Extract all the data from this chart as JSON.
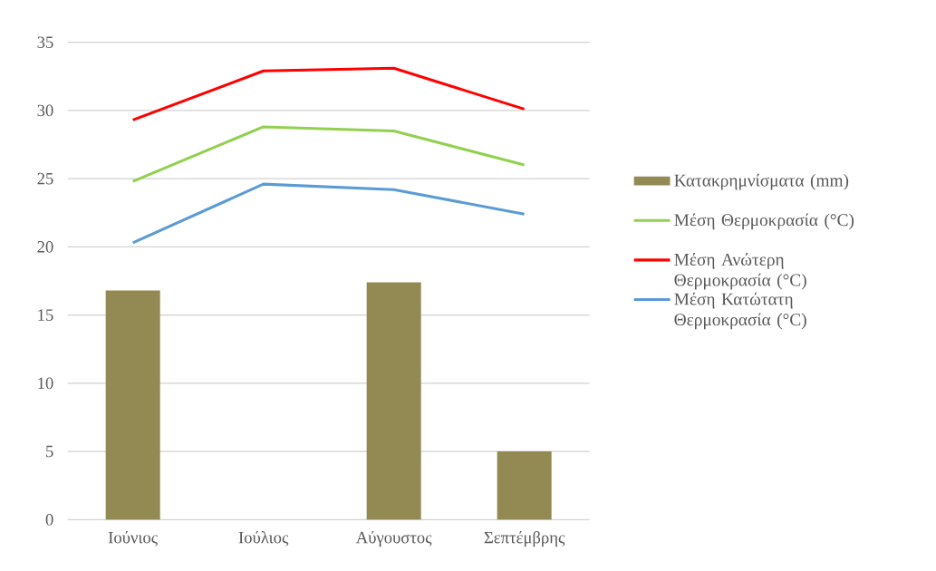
{
  "chart_data": {
    "type": "bar",
    "categories": [
      "Ιούνιος",
      "Ιούλιος",
      "Αύγουστος",
      "Σεπτέμβρης"
    ],
    "series": [
      {
        "name": "Κατακρημνίσματα (mm)",
        "color": "#938953",
        "values": [
          16.8,
          0,
          17.4,
          5.0
        ]
      },
      {
        "name": "Μέση Θερμοκρασία (°C)",
        "type": "line",
        "color": "#92d050",
        "values": [
          24.8,
          28.8,
          28.5,
          26.0
        ]
      },
      {
        "name": "Μέση Ανώτερη Θερμοκρασία (°C)",
        "type": "line",
        "color": "#ff0000",
        "values": [
          29.3,
          32.9,
          33.1,
          30.1
        ]
      },
      {
        "name": "Μέση Κατώτατη Θερμοκρασία (°C)",
        "type": "line",
        "color": "#5b9bd5",
        "values": [
          20.3,
          24.6,
          24.2,
          22.4
        ]
      }
    ],
    "ylim": [
      0,
      35
    ],
    "yticks": [
      0,
      5,
      10,
      15,
      20,
      25,
      30,
      35
    ],
    "grid": "y",
    "legend": "right"
  }
}
